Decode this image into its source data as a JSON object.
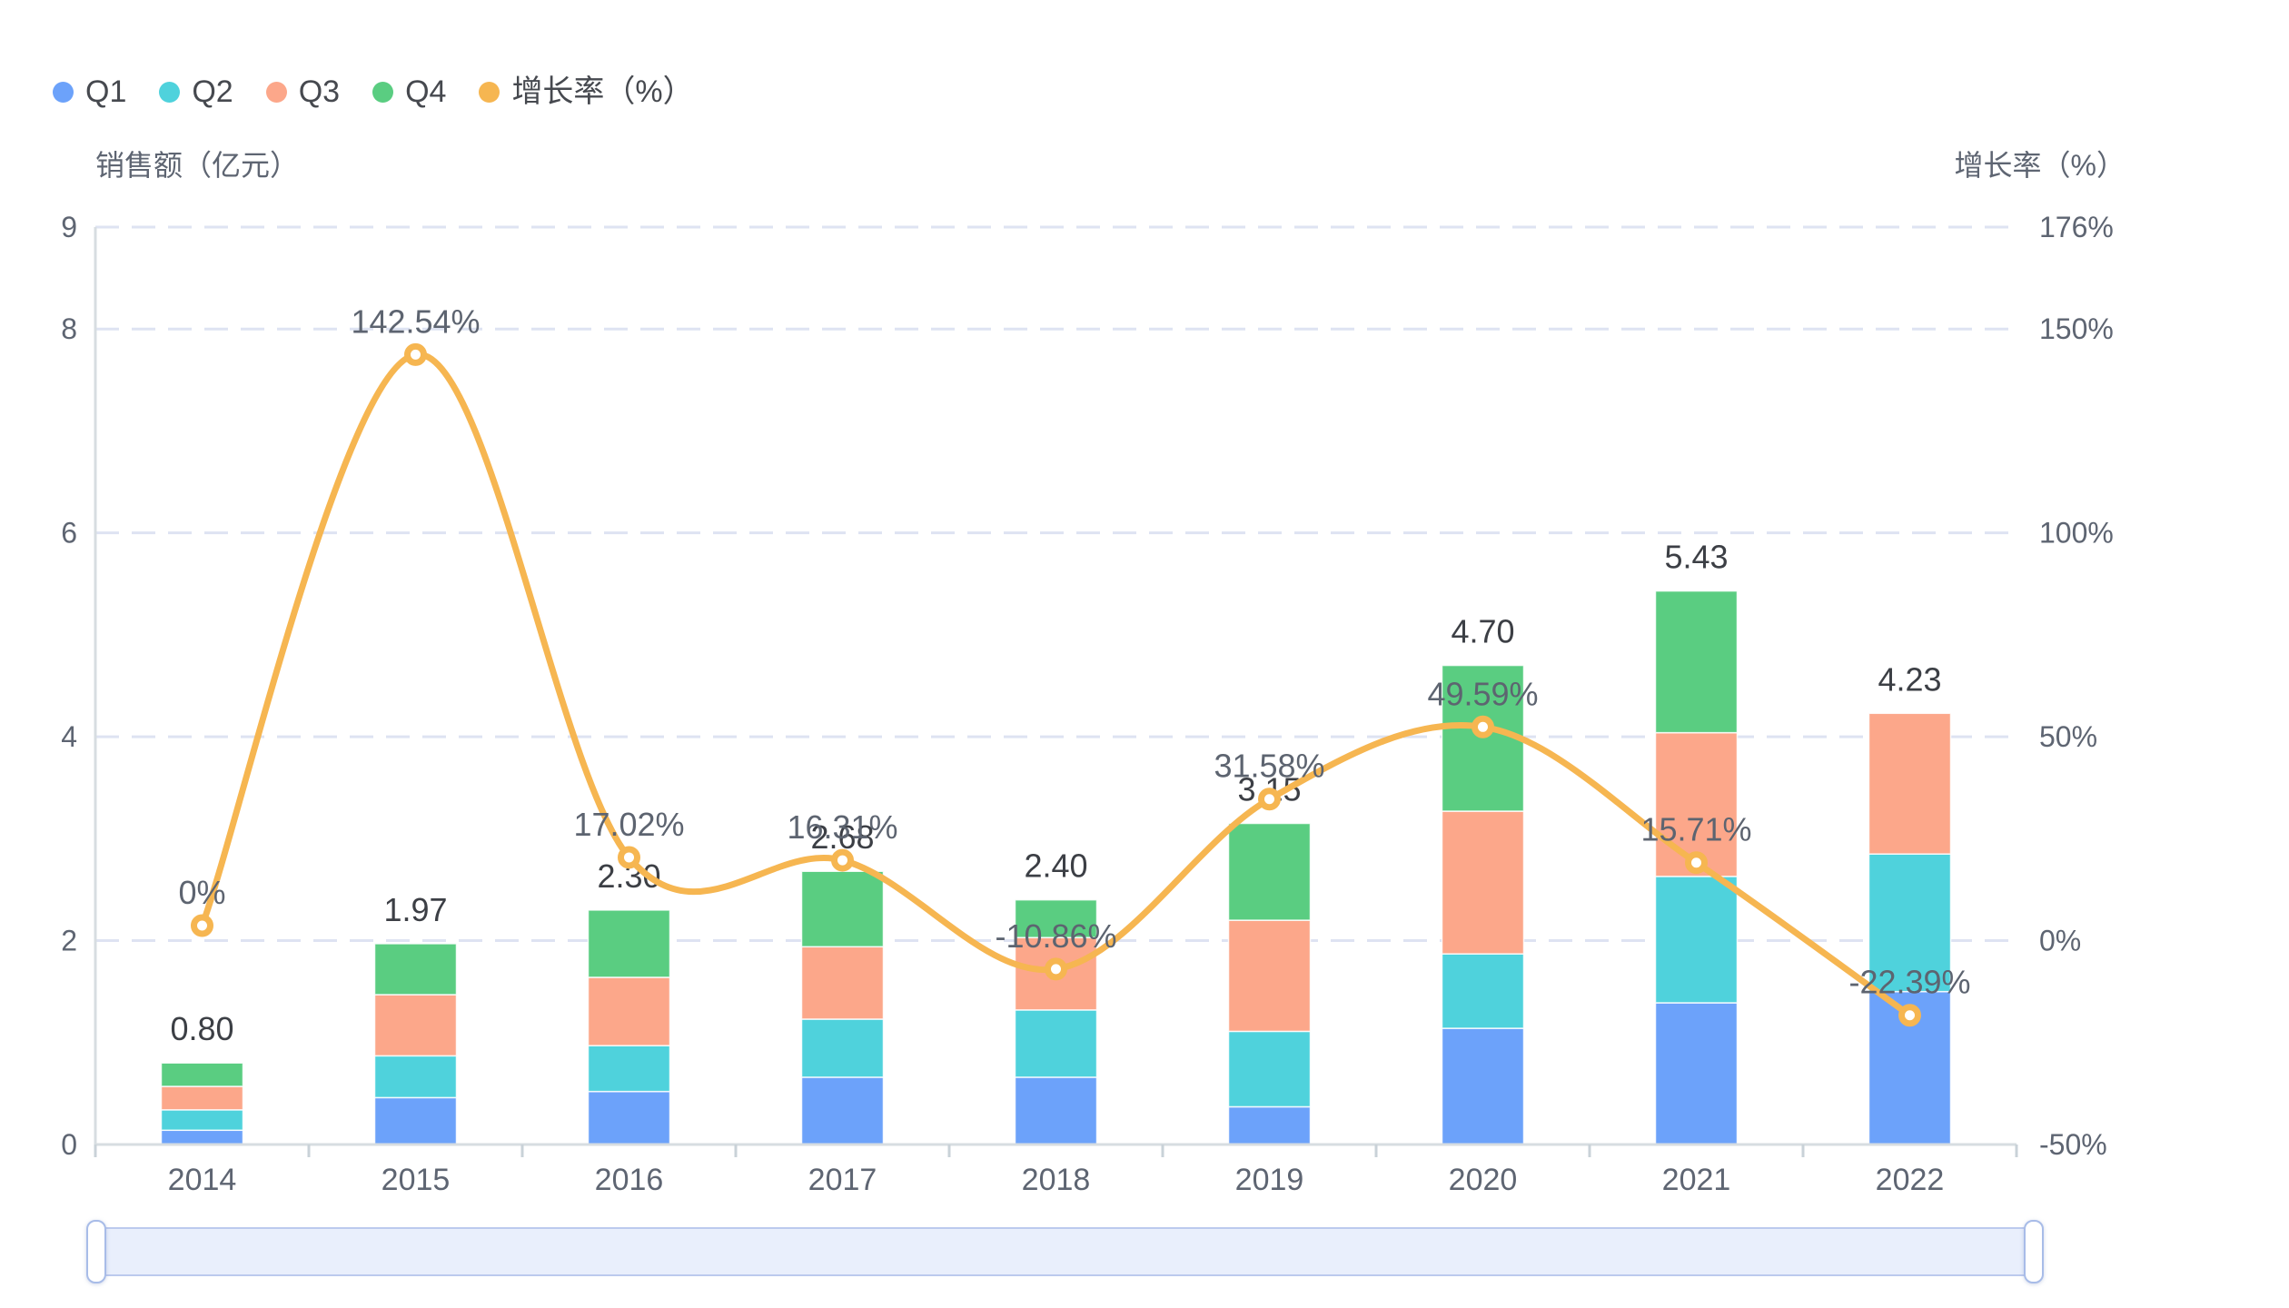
{
  "legend": {
    "items": [
      {
        "name": "q1",
        "label": "Q1",
        "color": "#6CA2FA"
      },
      {
        "name": "q2",
        "label": "Q2",
        "color": "#4FD2DC"
      },
      {
        "name": "q3",
        "label": "Q3",
        "color": "#FCA78A"
      },
      {
        "name": "q4",
        "label": "Q4",
        "color": "#5ACD81"
      },
      {
        "name": "growth-rate",
        "label": "增长率（%）",
        "color": "#F6B651"
      }
    ]
  },
  "axes": {
    "left_title": "销售额（亿元）",
    "right_title": "增长率（%）",
    "left_ticks": [
      {
        "value": 0,
        "label": "0"
      },
      {
        "value": 2,
        "label": "2"
      },
      {
        "value": 4,
        "label": "4"
      },
      {
        "value": 6,
        "label": "6"
      },
      {
        "value": 8,
        "label": "8"
      },
      {
        "value": 9,
        "label": "9"
      }
    ],
    "right_ticks": [
      {
        "at_left_value": 0,
        "label": "-50%"
      },
      {
        "at_left_value": 2,
        "label": "0%"
      },
      {
        "at_left_value": 4,
        "label": "50%"
      },
      {
        "at_left_value": 6,
        "label": "100%"
      },
      {
        "at_left_value": 8,
        "label": "150%"
      },
      {
        "at_left_value": 9,
        "label": "176%"
      }
    ],
    "x_labels": [
      "2014",
      "2015",
      "2016",
      "2017",
      "2018",
      "2019",
      "2020",
      "2021",
      "2022"
    ]
  },
  "chart_data": {
    "type": "bar-line-combo",
    "categories": [
      "2014",
      "2015",
      "2016",
      "2017",
      "2018",
      "2019",
      "2020",
      "2021",
      "2022"
    ],
    "stacked_bar_series": [
      {
        "name": "Q1",
        "color": "#6CA2FA",
        "values": [
          0.14,
          0.46,
          0.52,
          0.66,
          0.66,
          0.37,
          1.14,
          1.39,
          1.5
        ]
      },
      {
        "name": "Q2",
        "color": "#4FD2DC",
        "values": [
          0.2,
          0.41,
          0.45,
          0.57,
          0.66,
          0.74,
          0.73,
          1.24,
          1.35
        ]
      },
      {
        "name": "Q3",
        "color": "#FCA78A",
        "values": [
          0.23,
          0.6,
          0.67,
          0.71,
          0.71,
          1.09,
          1.4,
          1.41,
          1.38
        ]
      },
      {
        "name": "Q4",
        "color": "#5ACD81",
        "values": [
          0.23,
          0.5,
          0.66,
          0.74,
          0.37,
          0.95,
          1.43,
          1.39,
          0.0
        ]
      }
    ],
    "bar_total_labels": [
      "0.80",
      "1.97",
      "2.30",
      "2.68",
      "2.40",
      "3.15",
      "4.70",
      "5.43",
      "4.23"
    ],
    "bar_totals": [
      0.8,
      1.97,
      2.3,
      2.68,
      2.4,
      3.15,
      4.7,
      5.43,
      4.23
    ],
    "line_series": {
      "name": "增长率（%）",
      "color": "#F6B651",
      "values_pct": [
        0,
        142.54,
        17.02,
        16.31,
        -10.86,
        31.58,
        49.59,
        15.71,
        -22.39
      ],
      "labels": [
        "0%",
        "142.54%",
        "17.02%",
        "16.31%",
        "-10.86%",
        "31.58%",
        "49.59%",
        "15.71%",
        "-22.39%"
      ],
      "smooth": true
    },
    "title": "",
    "xlabel": "",
    "ylabel_left": "销售额（亿元）",
    "ylabel_right": "增长率（%）",
    "left_axis_range": [
      0,
      9
    ],
    "right_axis_range": [
      -50,
      176
    ],
    "grid": "horizontal-dashed",
    "legend_position": "top-left"
  },
  "slider": {
    "type": "datazoom-horizontal",
    "range": "full"
  }
}
